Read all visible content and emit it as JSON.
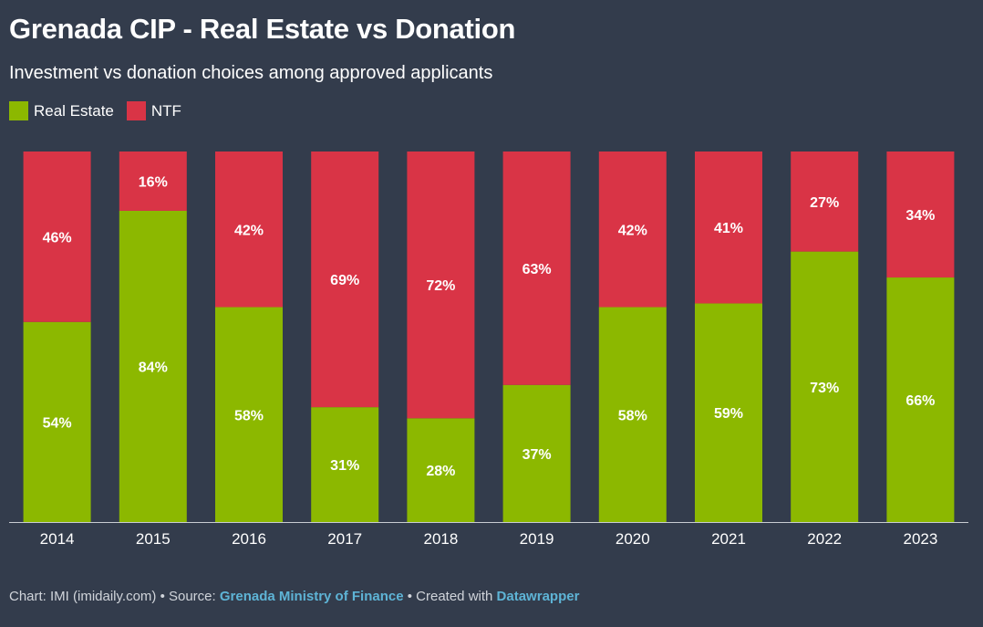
{
  "colors": {
    "background": "#333c4c",
    "real_estate": "#8cb800",
    "ntf": "#d93446",
    "axis": "#c8ccd2"
  },
  "footer": {
    "chart_prefix": "Chart: IMI (imidaily.com) • Source: ",
    "source": "Grenada Ministry of Finance",
    "created_prefix": " • Created with ",
    "tool": "Datawrapper"
  },
  "chart_data": {
    "type": "bar",
    "stacked": true,
    "title": "Grenada CIP - Real Estate vs Donation",
    "subtitle": "Investment vs donation choices among approved applicants",
    "legend_position": "top-left",
    "categories": [
      "2014",
      "2015",
      "2016",
      "2017",
      "2018",
      "2019",
      "2020",
      "2021",
      "2022",
      "2023"
    ],
    "ylim": [
      0,
      100
    ],
    "grid": false,
    "series": [
      {
        "name": "Real Estate",
        "color": "#8cb800",
        "values": [
          54,
          84,
          58,
          31,
          28,
          37,
          58,
          59,
          73,
          66
        ],
        "labels": [
          "54%",
          "84%",
          "58%",
          "31%",
          "28%",
          "37%",
          "58%",
          "59%",
          "73%",
          "66%"
        ]
      },
      {
        "name": "NTF",
        "color": "#d93446",
        "values": [
          46,
          16,
          42,
          69,
          72,
          63,
          42,
          41,
          27,
          34
        ],
        "labels": [
          "46%",
          "16%",
          "42%",
          "69%",
          "72%",
          "63%",
          "42%",
          "41%",
          "27%",
          "34%"
        ]
      }
    ]
  }
}
